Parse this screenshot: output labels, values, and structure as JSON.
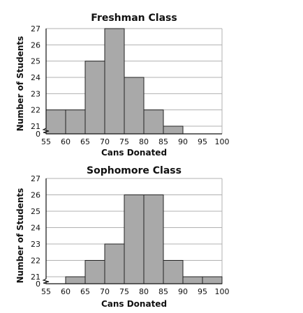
{
  "chart_data": [
    {
      "type": "bar",
      "title": "Freshman Class",
      "xlabel": "Cans Donated",
      "ylabel": "Number of Students",
      "x_ticks": [
        "55",
        "60",
        "65",
        "70",
        "75",
        "80",
        "85",
        "90",
        "95",
        "100"
      ],
      "y_ticks": [
        "0",
        "21",
        "22",
        "23",
        "24",
        "25",
        "26",
        "27"
      ],
      "bins": [
        {
          "range": "55-60",
          "start": 55,
          "end": 60,
          "value": 22
        },
        {
          "range": "60-65",
          "start": 60,
          "end": 65,
          "value": 22
        },
        {
          "range": "65-70",
          "start": 65,
          "end": 70,
          "value": 25
        },
        {
          "range": "70-75",
          "start": 70,
          "end": 75,
          "value": 27
        },
        {
          "range": "75-80",
          "start": 75,
          "end": 80,
          "value": 24
        },
        {
          "range": "80-85",
          "start": 80,
          "end": 85,
          "value": 22
        },
        {
          "range": "85-90",
          "start": 85,
          "end": 90,
          "value": 21
        }
      ],
      "xlim": [
        55,
        100
      ],
      "ylim": [
        20,
        27
      ],
      "axis_break": true,
      "grid": true,
      "bar_color": "#a9a9a9"
    },
    {
      "type": "bar",
      "title": "Sophomore Class",
      "xlabel": "Cans Donated",
      "ylabel": "Number of Students",
      "x_ticks": [
        "55",
        "60",
        "65",
        "70",
        "75",
        "80",
        "85",
        "90",
        "95",
        "100"
      ],
      "y_ticks": [
        "0",
        "21",
        "22",
        "23",
        "24",
        "25",
        "26",
        "27"
      ],
      "bins": [
        {
          "range": "60-65",
          "start": 60,
          "end": 65,
          "value": 21
        },
        {
          "range": "65-70",
          "start": 65,
          "end": 70,
          "value": 22
        },
        {
          "range": "70-75",
          "start": 70,
          "end": 75,
          "value": 23
        },
        {
          "range": "75-80",
          "start": 75,
          "end": 80,
          "value": 26
        },
        {
          "range": "80-85",
          "start": 80,
          "end": 85,
          "value": 26
        },
        {
          "range": "85-90",
          "start": 85,
          "end": 90,
          "value": 22
        },
        {
          "range": "90-95",
          "start": 90,
          "end": 95,
          "value": 21
        },
        {
          "range": "95-100",
          "start": 95,
          "end": 100,
          "value": 21
        }
      ],
      "xlim": [
        55,
        100
      ],
      "ylim": [
        20,
        27
      ],
      "axis_break": true,
      "grid": true,
      "bar_color": "#a9a9a9"
    }
  ]
}
